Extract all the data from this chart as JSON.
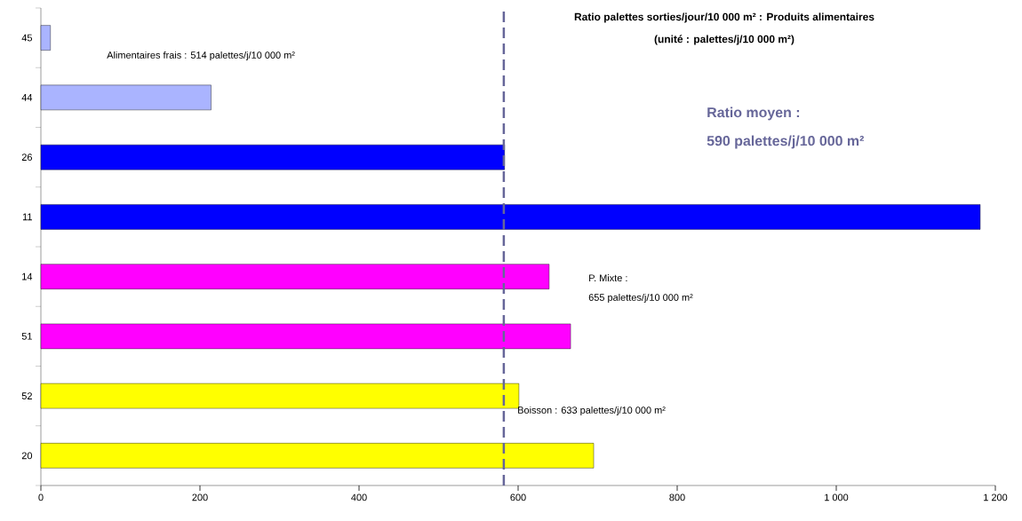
{
  "chart_data": {
    "type": "bar",
    "orientation": "horizontal",
    "title": "Ratio palettes sorties/jour/10 000 m² : Produits alimentaires",
    "subtitle": "(unité : palettes/j/10 000 m²)",
    "categories": [
      "45",
      "44",
      "26",
      "11",
      "14",
      "51",
      "52",
      "20"
    ],
    "values": [
      12,
      214,
      583,
      1181,
      639,
      666,
      601,
      695
    ],
    "colors": [
      "#aab4ff",
      "#aab4ff",
      "#0000ff",
      "#0000ff",
      "#ff00ff",
      "#ff00ff",
      "#ffff00",
      "#ffff00"
    ],
    "xlim": [
      0,
      1200
    ],
    "xticks": [
      0,
      200,
      400,
      600,
      800,
      {
        "value": 1000,
        "label": "1 000"
      },
      {
        "value": 1200,
        "label": "1 200"
      }
    ],
    "ref_lines": [
      {
        "axis": "x",
        "value": 582,
        "color": "#666699",
        "line_style": "dashed"
      }
    ],
    "annotations": [
      "Alimentaires frais : 514 palettes/j/10 000 m²",
      "Ratio moyen :",
      "590  palettes/j/10 000 m²",
      "P. Mixte :",
      "655  palettes/j/10 000 m²",
      "Boisson : 633 palettes/j/10 000 m²"
    ],
    "grid": false
  }
}
